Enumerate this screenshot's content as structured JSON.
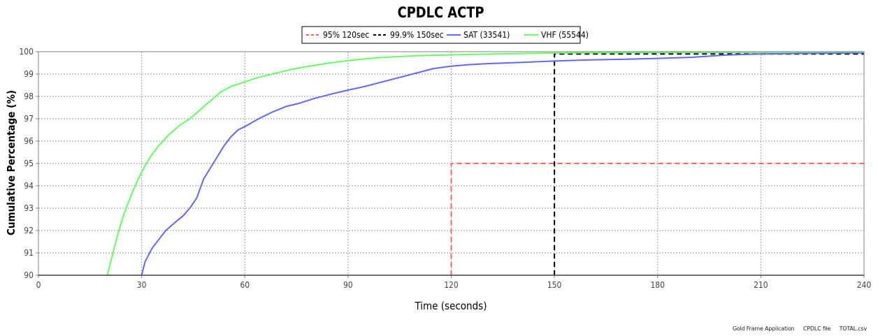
{
  "colors": {
    "sat": "#6464ff",
    "vhf": "#64ff64",
    "target95": "#ff6464",
    "target999": "#000000",
    "grid": "#a0a0a0"
  },
  "footer": {
    "app": "Gold Frame Application",
    "file_type": "CPDLC file",
    "file_name": "TOTAL.csv"
  },
  "chart_data": {
    "type": "line",
    "title": "CPDLC ACTP",
    "xlabel": "Time (seconds)",
    "ylabel": "Cumulative Percentage (%)",
    "xlim": [
      0,
      240
    ],
    "ylim": [
      90,
      100
    ],
    "xticks": [
      "0",
      "30",
      "60",
      "90",
      "120",
      "150",
      "180",
      "210",
      "240"
    ],
    "yticks": [
      "90",
      "91",
      "92",
      "93",
      "94",
      "95",
      "96",
      "97",
      "98",
      "99",
      "100"
    ],
    "grid": true,
    "legend_position": "top-center",
    "legend": [
      "95% 120sec",
      "99.9% 150sec",
      "SAT (33541)",
      "VHF (55544)"
    ],
    "series": [
      {
        "name": "95% 120sec",
        "style": "dashed",
        "color": "#ff6464",
        "x": [
          120,
          120,
          240
        ],
        "y": [
          90,
          95,
          95
        ]
      },
      {
        "name": "99.9% 150sec",
        "style": "dashed",
        "color": "#000000",
        "x": [
          150,
          150,
          240
        ],
        "y": [
          90,
          99.9,
          99.9
        ]
      },
      {
        "name": "SAT (33541)",
        "style": "solid",
        "color": "#6464ff",
        "x": [
          30,
          31,
          33,
          35,
          37,
          40,
          42,
          44,
          46,
          48,
          50,
          52,
          54,
          56,
          58,
          60,
          64,
          68,
          72,
          76,
          80,
          85,
          90,
          95,
          100,
          105,
          110,
          115,
          120,
          125,
          130,
          140,
          150,
          160,
          170,
          180,
          190,
          200,
          210,
          220,
          230,
          240
        ],
        "y": [
          90,
          90.6,
          91.2,
          91.6,
          92.0,
          92.4,
          92.65,
          93.0,
          93.45,
          94.3,
          94.8,
          95.3,
          95.8,
          96.2,
          96.5,
          96.65,
          97.0,
          97.3,
          97.55,
          97.7,
          97.9,
          98.1,
          98.28,
          98.45,
          98.65,
          98.85,
          99.05,
          99.25,
          99.35,
          99.42,
          99.46,
          99.52,
          99.58,
          99.63,
          99.66,
          99.7,
          99.75,
          99.85,
          99.9,
          99.92,
          99.93,
          99.95
        ]
      },
      {
        "name": "VHF (55544)",
        "style": "solid",
        "color": "#64ff64",
        "x": [
          20,
          21,
          23,
          25,
          27,
          29,
          31,
          33,
          35,
          38,
          41,
          44,
          47,
          50,
          53,
          56,
          60,
          64,
          68,
          72,
          76,
          80,
          85,
          90,
          95,
          100,
          105,
          110,
          120,
          130,
          140,
          150,
          160,
          180,
          200,
          220,
          240
        ],
        "y": [
          90,
          90.6,
          91.8,
          92.8,
          93.6,
          94.3,
          94.9,
          95.4,
          95.8,
          96.3,
          96.7,
          97.0,
          97.4,
          97.8,
          98.2,
          98.45,
          98.65,
          98.85,
          99.0,
          99.15,
          99.28,
          99.38,
          99.5,
          99.6,
          99.68,
          99.74,
          99.78,
          99.82,
          99.86,
          99.89,
          99.92,
          99.94,
          99.95,
          99.96,
          99.97,
          99.98,
          99.99
        ]
      }
    ]
  }
}
